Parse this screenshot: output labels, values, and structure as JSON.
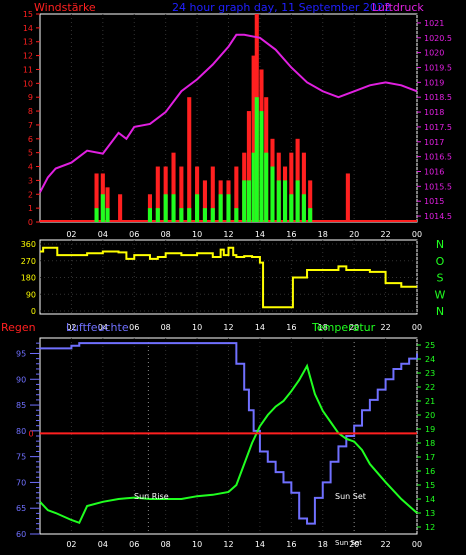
{
  "header": {
    "wind_label": "Windstärke",
    "date_label": "24 hour graph day, 11 September 2022",
    "pressure_label": "Luftdruck"
  },
  "labels": {
    "rain": "Regen",
    "humidity": "Luftfeuchte",
    "temperature": "Temperatur",
    "sunrise": "Sun Rise",
    "sunset": "Sun Set",
    "sunset_small": "Sun Set"
  },
  "colors": {
    "background": "#000000",
    "wind_gust": "#ff2020",
    "wind_avg": "#20ff20",
    "pressure": "#e020e0",
    "direction": "#ffff00",
    "humidity": "#7070ff",
    "temperature": "#20ff20",
    "rain": "#ff2020",
    "axis_wind": "#ff2020",
    "axis_pressure": "#e020e0",
    "axis_direction": "#ffff00",
    "axis_compass": "#20ff20",
    "axis_humidity": "#7070ff",
    "axis_temp": "#20ff20",
    "date": "#2020ff",
    "hour_ticks": "#ffff00"
  },
  "chart_data": [
    {
      "type": "line",
      "x_ticks": [
        "02",
        "04",
        "06",
        "08",
        "10",
        "12",
        "14",
        "16",
        "18",
        "20",
        "22",
        "00"
      ],
      "xlim": [
        0,
        24
      ],
      "wind_axis": {
        "ticks": [
          0,
          1,
          2,
          3,
          4,
          5,
          6,
          7,
          8,
          9,
          10,
          11,
          12,
          13,
          14,
          15
        ],
        "ylim": [
          0,
          15
        ]
      },
      "pressure_axis": {
        "ticks": [
          "1014.5",
          "1015",
          "1015.5",
          "1016",
          "1016.5",
          "1017",
          "1017.5",
          "1018",
          "1018.5",
          "1019",
          "1019.5",
          "1020",
          "1020.5",
          "1021"
        ],
        "ylim": [
          1014.3,
          1021.3
        ]
      },
      "series": [
        {
          "name": "Luftdruck",
          "x": [
            0,
            0.5,
            1,
            2,
            3,
            4,
            5,
            5.5,
            6,
            7,
            8,
            9,
            10,
            11,
            12,
            12.5,
            13,
            14,
            15,
            16,
            17,
            18,
            19,
            20,
            21,
            22,
            23,
            24
          ],
          "values": [
            1015.3,
            1015.8,
            1016.1,
            1016.3,
            1016.7,
            1016.6,
            1017.3,
            1017.1,
            1017.5,
            1017.6,
            1018,
            1018.7,
            1019.1,
            1019.6,
            1020.2,
            1020.6,
            1020.6,
            1020.5,
            1020.1,
            1019.5,
            1019.0,
            1018.7,
            1018.5,
            1018.7,
            1018.9,
            1019.0,
            1018.9,
            1018.7
          ]
        }
      ],
      "wind_bars": [
        {
          "x": 3.6,
          "gust": 3.5,
          "avg": 1
        },
        {
          "x": 4.0,
          "gust": 3.5,
          "avg": 2
        },
        {
          "x": 4.3,
          "gust": 2.5,
          "avg": 1
        },
        {
          "x": 5.1,
          "gust": 2,
          "avg": 0
        },
        {
          "x": 7.0,
          "gust": 2,
          "avg": 1
        },
        {
          "x": 7.5,
          "gust": 4,
          "avg": 1
        },
        {
          "x": 8.0,
          "gust": 4,
          "avg": 2
        },
        {
          "x": 8.5,
          "gust": 5,
          "avg": 2
        },
        {
          "x": 9.0,
          "gust": 4,
          "avg": 1
        },
        {
          "x": 9.5,
          "gust": 9,
          "avg": 1
        },
        {
          "x": 10.0,
          "gust": 4,
          "avg": 2
        },
        {
          "x": 10.5,
          "gust": 3,
          "avg": 1
        },
        {
          "x": 11.0,
          "gust": 4,
          "avg": 1
        },
        {
          "x": 11.5,
          "gust": 3,
          "avg": 2
        },
        {
          "x": 12.0,
          "gust": 3,
          "avg": 2
        },
        {
          "x": 12.5,
          "gust": 4,
          "avg": 1
        },
        {
          "x": 13.0,
          "gust": 5,
          "avg": 3
        },
        {
          "x": 13.3,
          "gust": 8,
          "avg": 3
        },
        {
          "x": 13.6,
          "gust": 12,
          "avg": 5
        },
        {
          "x": 13.8,
          "gust": 15,
          "avg": 9
        },
        {
          "x": 14.1,
          "gust": 11,
          "avg": 8
        },
        {
          "x": 14.4,
          "gust": 9,
          "avg": 5
        },
        {
          "x": 14.8,
          "gust": 6,
          "avg": 4
        },
        {
          "x": 15.2,
          "gust": 5,
          "avg": 3
        },
        {
          "x": 15.6,
          "gust": 4,
          "avg": 3
        },
        {
          "x": 16.0,
          "gust": 5,
          "avg": 2
        },
        {
          "x": 16.4,
          "gust": 6,
          "avg": 3
        },
        {
          "x": 16.8,
          "gust": 5,
          "avg": 2
        },
        {
          "x": 17.2,
          "gust": 3,
          "avg": 1
        },
        {
          "x": 19.6,
          "gust": 3.5,
          "avg": 0
        }
      ]
    },
    {
      "type": "line",
      "x_ticks": [
        "02",
        "04",
        "06",
        "08",
        "10",
        "12",
        "14",
        "16",
        "18",
        "20",
        "22",
        "00"
      ],
      "xlim": [
        0,
        24
      ],
      "y_ticks": [
        0,
        90,
        180,
        270,
        360
      ],
      "compass": [
        "N",
        "W",
        "S",
        "O",
        "N"
      ],
      "ylim": [
        0,
        360
      ],
      "series": [
        {
          "name": "",
          "x": [
            0,
            0.2,
            1,
            1.1,
            2,
            3,
            3.8,
            4,
            5,
            5.5,
            6,
            7,
            7.5,
            8,
            9,
            10,
            11,
            11.5,
            11.7,
            12,
            12.3,
            12.5,
            13,
            13.5,
            14,
            14.2,
            15,
            16,
            16.1,
            17,
            18,
            19,
            19.5,
            20,
            21,
            22,
            23,
            24
          ],
          "values": [
            320,
            340,
            340,
            300,
            300,
            310,
            310,
            320,
            315,
            280,
            300,
            280,
            290,
            310,
            300,
            310,
            290,
            330,
            300,
            340,
            300,
            290,
            295,
            290,
            260,
            20,
            20,
            20,
            180,
            220,
            220,
            240,
            220,
            220,
            210,
            150,
            130,
            130
          ]
        }
      ]
    },
    {
      "type": "line",
      "x_ticks": [
        "02",
        "04",
        "06",
        "08",
        "10",
        "12",
        "14",
        "16",
        "18",
        "20",
        "22",
        "00"
      ],
      "xlim": [
        0,
        24
      ],
      "humidity_axis": {
        "ticks": [
          60,
          65,
          70,
          75,
          80,
          85,
          90,
          95
        ],
        "ylim": [
          60,
          98
        ]
      },
      "temp_axis": {
        "ticks": [
          12,
          13,
          14,
          15,
          16,
          17,
          18,
          19,
          20,
          21,
          22,
          23,
          24,
          25
        ],
        "ylim": [
          11.5,
          25.5
        ]
      },
      "rain_axis": {
        "ticks": [
          0
        ]
      },
      "sunrise_hour": 6.9,
      "sunset_hour": 20.0,
      "series": [
        {
          "name": "Luftfeuchte",
          "x": [
            0,
            0.5,
            1,
            2,
            2.5,
            3,
            4,
            5,
            6,
            7,
            8,
            9,
            10,
            11,
            12,
            12.5,
            13,
            13.3,
            13.6,
            14,
            14.5,
            15,
            15.5,
            16,
            16.5,
            17,
            17.5,
            18,
            18.5,
            19,
            19.5,
            20,
            20.5,
            21,
            21.5,
            22,
            22.5,
            23,
            23.5,
            24
          ],
          "values": [
            96,
            96,
            96,
            96.5,
            97,
            97,
            97,
            97,
            97,
            97,
            97,
            97,
            97,
            97,
            97,
            93,
            88,
            84,
            80,
            76,
            74,
            72,
            70,
            68,
            63,
            62,
            67,
            70,
            74,
            77,
            79,
            81,
            84,
            86,
            88,
            90,
            92,
            93,
            94,
            95
          ]
        },
        {
          "name": "Temperatur",
          "x": [
            0,
            0.5,
            1,
            2,
            2.5,
            3,
            4,
            5,
            6,
            7,
            8,
            9,
            10,
            11,
            12,
            12.5,
            13,
            13.5,
            14,
            14.5,
            15,
            15.5,
            16,
            16.5,
            17,
            17.5,
            18,
            18.5,
            19,
            19.5,
            20,
            20.5,
            21,
            22,
            23,
            24
          ],
          "values": [
            13.8,
            13.2,
            13,
            12.5,
            12.3,
            13.5,
            13.8,
            14,
            14.1,
            14,
            14,
            14,
            14.2,
            14.3,
            14.5,
            15,
            16.5,
            18,
            19.2,
            20,
            20.6,
            21,
            21.7,
            22.5,
            23.5,
            21.5,
            20.3,
            19.5,
            18.7,
            18.3,
            18.1,
            17.5,
            16.5,
            15.2,
            14,
            13
          ]
        },
        {
          "name": "Regen",
          "x": [
            0,
            24
          ],
          "values": [
            0,
            0
          ]
        }
      ]
    }
  ]
}
